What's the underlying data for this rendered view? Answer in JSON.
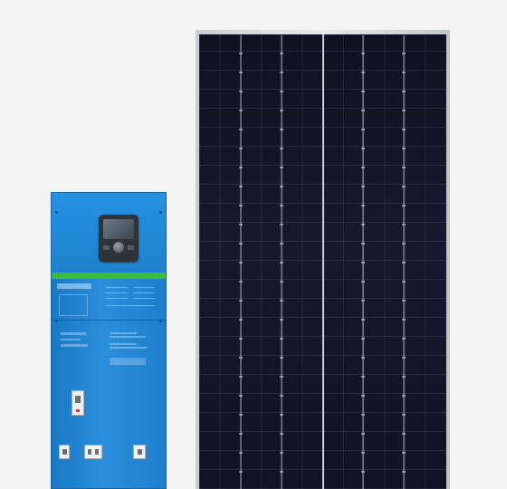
{
  "scene": {
    "background": "#f3f3f3",
    "objects": [
      "inverter-charger-cabinet",
      "solar-panel"
    ]
  },
  "cabinet": {
    "color": "#1f7fcd",
    "accent_stripe_color": "#3dbb3a",
    "display": "control-display",
    "breakers_bottom": 3,
    "breakers_middle": 1
  },
  "solar_panel": {
    "frame_color": "#d2d5d8",
    "cell_color": "#11162a",
    "columns_of_strings": 6,
    "halves": 2
  }
}
